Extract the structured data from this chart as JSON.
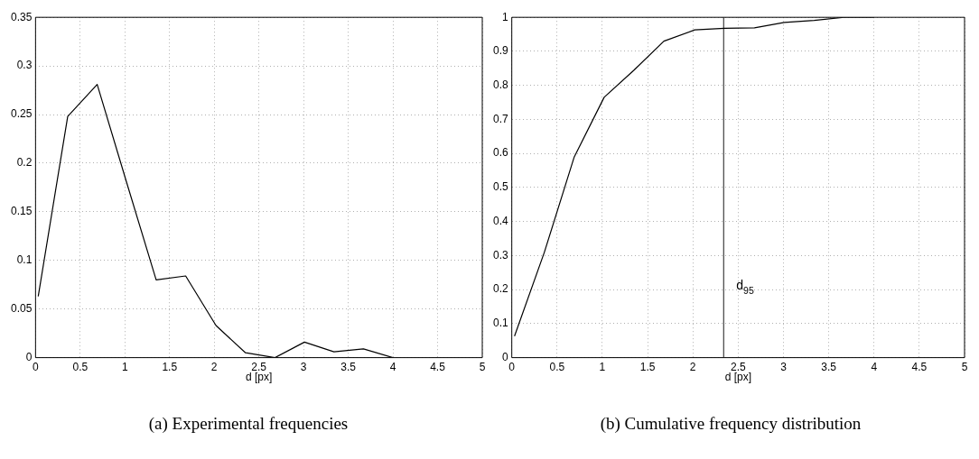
{
  "chart_data": [
    {
      "type": "line",
      "xlabel": "d [px]",
      "annotations": [
        "(a) Experimental frequencies"
      ],
      "x": [
        0.03,
        0.36,
        0.69,
        1.02,
        1.35,
        1.68,
        2.02,
        2.35,
        2.68,
        3.01,
        3.34,
        3.67,
        4.0
      ],
      "series": [
        {
          "color": "#000000",
          "values": [
            0.063,
            0.248,
            0.281,
            0.18,
            0.08,
            0.084,
            0.033,
            0.005,
            0.0,
            0.016,
            0.006,
            0.009,
            0.0
          ]
        }
      ],
      "xlim": [
        0,
        5
      ],
      "xticks": [
        0,
        0.5,
        1,
        1.5,
        2,
        2.5,
        3,
        3.5,
        4,
        4.5,
        5
      ],
      "ylim": [
        0,
        0.35
      ],
      "yticks": [
        0,
        0.05,
        0.1,
        0.15,
        0.2,
        0.25,
        0.3,
        0.35
      ],
      "grid": true,
      "legend": false,
      "marker": "none",
      "line_style": "solid"
    },
    {
      "type": "line",
      "xlabel": "d [px]",
      "annotations": [
        "(b) Cumulative frequency distribution"
      ],
      "x": [
        0.03,
        0.36,
        0.69,
        1.02,
        1.35,
        1.68,
        2.02,
        2.35,
        2.68,
        3.01,
        3.34,
        3.67,
        4.0
      ],
      "series": [
        {
          "color": "#000000",
          "values": [
            0.063,
            0.31,
            0.59,
            0.765,
            0.845,
            0.93,
            0.963,
            0.968,
            0.969,
            0.985,
            0.991,
            1.0,
            1.0
          ]
        }
      ],
      "ref_lines": [
        {
          "axis": "x",
          "value": 2.34,
          "label": "d$_{95}$",
          "color": "#404040"
        }
      ],
      "xlim": [
        0,
        5
      ],
      "xticks": [
        0,
        0.5,
        1,
        1.5,
        2,
        2.5,
        3,
        3.5,
        4,
        4.5,
        5
      ],
      "ylim": [
        0,
        1
      ],
      "yticks": [
        0,
        0.1,
        0.2,
        0.3,
        0.4,
        0.5,
        0.6,
        0.7,
        0.8,
        0.9,
        1
      ],
      "grid": true,
      "legend": false,
      "marker": "none",
      "line_style": "solid"
    }
  ]
}
